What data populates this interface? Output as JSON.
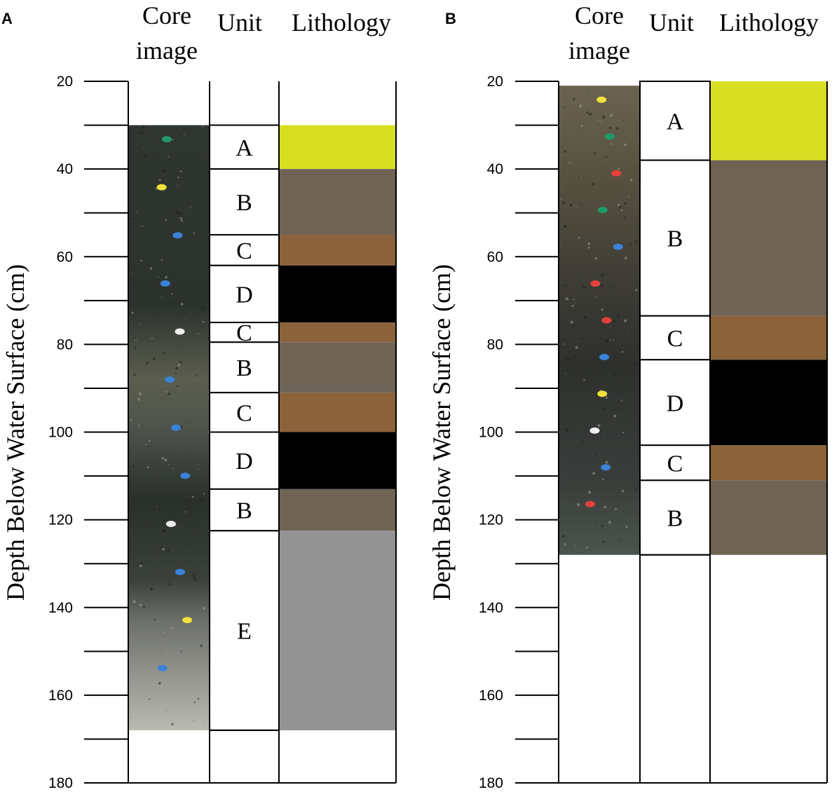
{
  "panels": [
    {
      "id": "A",
      "letter": "A",
      "headers": {
        "core_line1": "Core",
        "core_line2": "image",
        "unit": "Unit",
        "lithology": "Lithology"
      },
      "ylabel": "Depth Below Water Surface (cm)",
      "axis": {
        "min": 20,
        "max": 180,
        "major_ticks": [
          20,
          40,
          60,
          80,
          100,
          120,
          140,
          160,
          180
        ],
        "minor_step": 10
      },
      "core": {
        "top": 30,
        "bottom": 168
      },
      "column_bottom": 180,
      "units": [
        {
          "label": "A",
          "top": 30,
          "bottom": 40,
          "lithology": "yellow"
        },
        {
          "label": "B",
          "top": 40,
          "bottom": 55,
          "lithology": "grey-brown"
        },
        {
          "label": "C",
          "top": 55,
          "bottom": 62,
          "lithology": "brown"
        },
        {
          "label": "D",
          "top": 62,
          "bottom": 75,
          "lithology": "black"
        },
        {
          "label": "C",
          "top": 75,
          "bottom": 79.5,
          "lithology": "brown"
        },
        {
          "label": "B",
          "top": 79.5,
          "bottom": 91,
          "lithology": "grey-brown"
        },
        {
          "label": "C",
          "top": 91,
          "bottom": 100,
          "lithology": "brown"
        },
        {
          "label": "D",
          "top": 100,
          "bottom": 113,
          "lithology": "black"
        },
        {
          "label": "B",
          "top": 113,
          "bottom": 122.5,
          "lithology": "grey-brown"
        },
        {
          "label": "E",
          "top": 122.5,
          "bottom": 168,
          "lithology": "grey"
        }
      ]
    },
    {
      "id": "B",
      "letter": "B",
      "headers": {
        "core_line1": "Core",
        "core_line2": "image",
        "unit": "Unit",
        "lithology": "Lithology"
      },
      "ylabel": "Depth Below Water Surface (cm)",
      "axis": {
        "min": 20,
        "max": 180,
        "major_ticks": [
          20,
          40,
          60,
          80,
          100,
          120,
          140,
          160,
          180
        ],
        "minor_step": 10
      },
      "core": {
        "top": 21,
        "bottom": 128
      },
      "column_bottom": 180,
      "units": [
        {
          "label": "A",
          "top": 20,
          "bottom": 38,
          "lithology": "yellow"
        },
        {
          "label": "B",
          "top": 38,
          "bottom": 73.5,
          "lithology": "grey-brown"
        },
        {
          "label": "C",
          "top": 73.5,
          "bottom": 83.5,
          "lithology": "brown"
        },
        {
          "label": "D",
          "top": 83.5,
          "bottom": 103,
          "lithology": "black"
        },
        {
          "label": "C",
          "top": 103,
          "bottom": 111,
          "lithology": "brown"
        },
        {
          "label": "B",
          "top": 111,
          "bottom": 128,
          "lithology": "grey-brown"
        }
      ]
    }
  ],
  "lithology_colors": {
    "yellow": "#d8df22",
    "grey-brown": "#6f6356",
    "brown": "#8b6239",
    "black": "#000000",
    "grey": "#939393"
  }
}
